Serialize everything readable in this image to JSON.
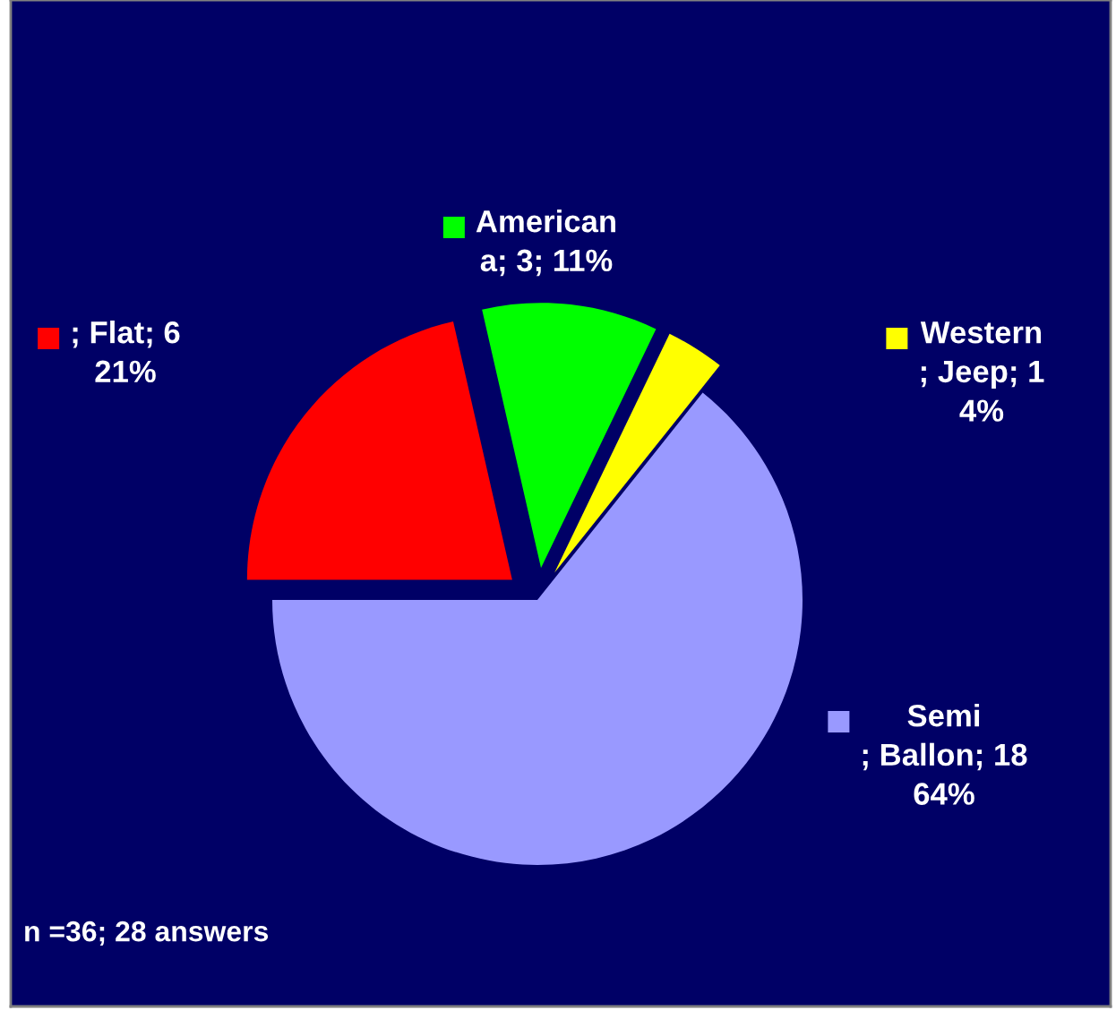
{
  "chart_data": {
    "type": "pie",
    "categories": [
      "; Flat; 6\n21%",
      "American\na; 3; 11%",
      "Western\n; Jeep; 1\n4%",
      "Semi\n; Ballon; 18\n64%"
    ],
    "values": [
      6,
      3,
      1,
      18
    ],
    "colors": [
      "#ff0000",
      "#00ff00",
      "#ffff00",
      "#9999ff"
    ],
    "legend": "right",
    "annotations": [
      "n =36; 28 answers"
    ]
  }
}
